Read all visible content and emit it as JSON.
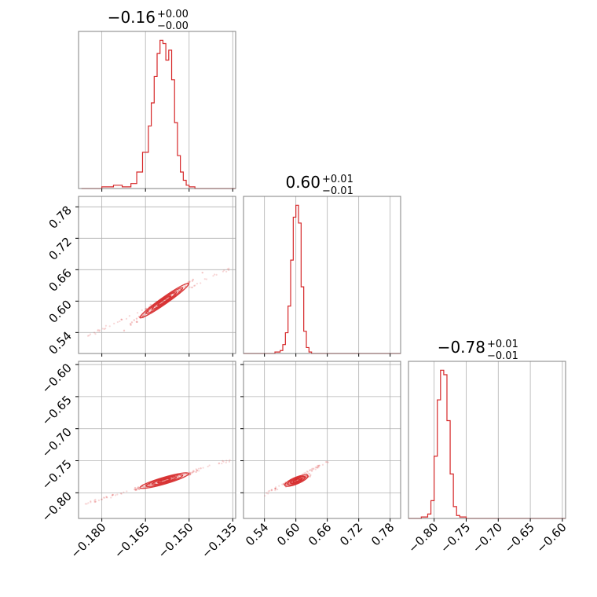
{
  "chart_data": {
    "type": "corner",
    "color": "#d62728",
    "grid": true,
    "parameters": [
      {
        "title": {
          "value": "−0.16",
          "plus": "+0.00",
          "minus": "−0.00"
        },
        "range": [
          -0.188,
          -0.134
        ],
        "ticks": [
          -0.18,
          -0.165,
          -0.15,
          -0.135
        ],
        "tick_labels": [
          "−0.180",
          "−0.165",
          "−0.150",
          "−0.135"
        ],
        "hist": {
          "x": [
            -0.187,
            -0.18,
            -0.176,
            -0.173,
            -0.17,
            -0.168,
            -0.166,
            -0.164,
            -0.163,
            -0.162,
            -0.161,
            -0.16,
            -0.159,
            -0.158,
            -0.157,
            -0.156,
            -0.155,
            -0.154,
            -0.153,
            -0.152,
            -0.151,
            -0.15,
            -0.149,
            -0.148,
            -0.146,
            -0.143,
            -0.14,
            -0.135
          ],
          "y": [
            0,
            1,
            2,
            1,
            3,
            10,
            22,
            38,
            52,
            68,
            82,
            90,
            88,
            78,
            84,
            66,
            40,
            20,
            10,
            5,
            2,
            1,
            1,
            0,
            0,
            0,
            0,
            0
          ]
        }
      },
      {
        "title": {
          "value": "0.60",
          "plus": "+0.01",
          "minus": "−0.01"
        },
        "range": [
          0.5,
          0.8
        ],
        "ticks": [
          0.54,
          0.6,
          0.66,
          0.72,
          0.78
        ],
        "tick_labels": [
          "0.54",
          "0.60",
          "0.66",
          "0.72",
          "0.78"
        ],
        "hist": {
          "x": [
            0.5,
            0.56,
            0.57,
            0.575,
            0.58,
            0.585,
            0.59,
            0.595,
            0.6,
            0.605,
            0.61,
            0.615,
            0.62,
            0.625,
            0.63,
            0.64,
            0.66,
            0.7,
            0.75,
            0.8
          ],
          "y": [
            0,
            1,
            2,
            6,
            14,
            32,
            63,
            92,
            100,
            88,
            45,
            15,
            4,
            1,
            0,
            0,
            0,
            0,
            0,
            0
          ]
        }
      },
      {
        "title": {
          "value": "−0.78",
          "plus": "+0.01",
          "minus": "−0.01"
        },
        "range": [
          -0.84,
          -0.595
        ],
        "ticks": [
          -0.8,
          -0.75,
          -0.7,
          -0.65,
          -0.6
        ],
        "tick_labels": [
          "−0.80",
          "−0.75",
          "−0.70",
          "−0.65",
          "−0.60"
        ],
        "hist": {
          "x": [
            -0.84,
            -0.82,
            -0.81,
            -0.805,
            -0.8,
            -0.795,
            -0.79,
            -0.785,
            -0.78,
            -0.775,
            -0.77,
            -0.765,
            -0.76,
            -0.75,
            -0.7,
            -0.65,
            -0.595
          ],
          "y": [
            0,
            1,
            3,
            12,
            42,
            80,
            100,
            97,
            66,
            30,
            8,
            2,
            1,
            0,
            0,
            0,
            0
          ]
        }
      }
    ],
    "pairs": [
      {
        "x_param": 0,
        "y_param": 1,
        "center": [
          -0.1585,
          0.601
        ],
        "slope": 3.9,
        "spread_x": 0.0042,
        "spread_perp": 0.0035,
        "tail": [
          [
            -0.185,
            0.533
          ],
          [
            -0.136,
            0.662
          ]
        ]
      },
      {
        "x_param": 0,
        "y_param": 2,
        "center": [
          -0.1585,
          -0.781
        ],
        "slope": 1.32,
        "spread_x": 0.0042,
        "spread_perp": 0.0025,
        "tail": [
          [
            -0.186,
            -0.818
          ],
          [
            -0.136,
            -0.749
          ]
        ]
      },
      {
        "x_param": 1,
        "y_param": 2,
        "center": [
          0.601,
          -0.781
        ],
        "slope": 0.34,
        "spread_x": 0.011,
        "spread_perp": 0.0025,
        "tail": [
          [
            0.535,
            -0.805
          ],
          [
            0.665,
            -0.75
          ]
        ]
      }
    ]
  }
}
